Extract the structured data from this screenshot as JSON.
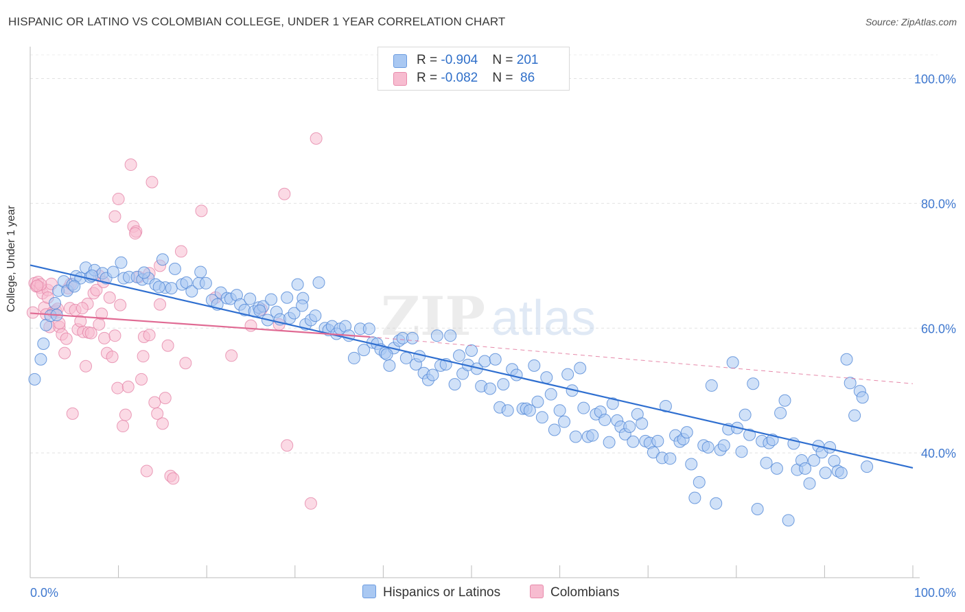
{
  "title": "HISPANIC OR LATINO VS COLOMBIAN COLLEGE, UNDER 1 YEAR CORRELATION CHART",
  "source": "Source: ZipAtlas.com",
  "watermark": {
    "zip": "ZIP",
    "atlas": "atlas"
  },
  "legend": {
    "rows": [
      {
        "r_label": "R = ",
        "r_value": "-0.904",
        "n_label": "N = ",
        "n_value": "201",
        "color": "#a9c8f2",
        "border": "#6a9be0"
      },
      {
        "r_label": "R = ",
        "r_value": "-0.082",
        "n_label": "N = ",
        "n_value": " 86",
        "color": "#f7bcd0",
        "border": "#e88aab"
      }
    ]
  },
  "chart_data": {
    "type": "scatter",
    "xlabel": "",
    "ylabel": "College, Under 1 year",
    "xlim": [
      0,
      100
    ],
    "ylim": [
      20,
      106
    ],
    "x_tick_labels": [
      "0.0%",
      "100.0%"
    ],
    "y_ticks": [
      40,
      60,
      80,
      100
    ],
    "y_tick_labels": [
      "40.0%",
      "60.0%",
      "80.0%",
      "100.0%"
    ],
    "grid": true,
    "legend_position": "bottom-center",
    "series": [
      {
        "name": "Hispanics or Latinos",
        "color": "#a9c8f2",
        "stroke": "#4f86d6",
        "trend": {
          "x": [
            0,
            100
          ],
          "y": [
            70.1,
            37.6
          ],
          "color": "#2f6fd0",
          "dashed_from": null
        },
        "points": [
          [
            0.5,
            51.8
          ],
          [
            1.2,
            55
          ],
          [
            1.5,
            57.5
          ],
          [
            1.8,
            60.5
          ],
          [
            2.3,
            62
          ],
          [
            2.8,
            64
          ],
          [
            3.2,
            66
          ],
          [
            3.8,
            67.5
          ],
          [
            4.2,
            66
          ],
          [
            4.8,
            67
          ],
          [
            5.2,
            68.3
          ],
          [
            5.7,
            68
          ],
          [
            6.3,
            69.7
          ],
          [
            6.8,
            68.2
          ],
          [
            7.3,
            69.3
          ],
          [
            8.2,
            68.8
          ],
          [
            8.6,
            68
          ],
          [
            9.4,
            69
          ],
          [
            10.3,
            70.5
          ],
          [
            10.6,
            68
          ],
          [
            11.2,
            68.2
          ],
          [
            12.1,
            68.2
          ],
          [
            12.7,
            67.8
          ],
          [
            13.4,
            68
          ],
          [
            14.2,
            67
          ],
          [
            15.0,
            71
          ],
          [
            15.3,
            66.5
          ],
          [
            16.0,
            66.4
          ],
          [
            16.4,
            69.5
          ],
          [
            17.2,
            67
          ],
          [
            17.7,
            67.3
          ],
          [
            18.3,
            65.9
          ],
          [
            19.1,
            67.2
          ],
          [
            19.3,
            69
          ],
          [
            19.9,
            67.2
          ],
          [
            20.6,
            64.5
          ],
          [
            21.2,
            63.8
          ],
          [
            21.6,
            65.7
          ],
          [
            22.3,
            64.8
          ],
          [
            22.7,
            64.7
          ],
          [
            23.4,
            65.3
          ],
          [
            23.8,
            63.8
          ],
          [
            24.3,
            62.9
          ],
          [
            24.9,
            64.7
          ],
          [
            25.4,
            62.7
          ],
          [
            25.9,
            63.3
          ],
          [
            26.4,
            63.5
          ],
          [
            26.9,
            61.3
          ],
          [
            27.3,
            64.6
          ],
          [
            27.9,
            62.6
          ],
          [
            28.3,
            61.4
          ],
          [
            29.1,
            64.9
          ],
          [
            29.4,
            61.6
          ],
          [
            29.9,
            62.4
          ],
          [
            30.3,
            67
          ],
          [
            30.9,
            64.8
          ],
          [
            31.2,
            60.6
          ],
          [
            31.8,
            61.3
          ],
          [
            32.3,
            62
          ],
          [
            32.7,
            67.3
          ],
          [
            33.4,
            60
          ],
          [
            33.8,
            59.7
          ],
          [
            34.2,
            60.3
          ],
          [
            34.7,
            59.1
          ],
          [
            35.1,
            59.9
          ],
          [
            35.7,
            60.3
          ],
          [
            36.1,
            58.8
          ],
          [
            36.7,
            55.2
          ],
          [
            37.4,
            59.9
          ],
          [
            37.8,
            56.5
          ],
          [
            38.4,
            59.9
          ],
          [
            38.8,
            57.7
          ],
          [
            39.3,
            57.5
          ],
          [
            39.7,
            56.6
          ],
          [
            40.2,
            56
          ],
          [
            40.7,
            54
          ],
          [
            41.2,
            56.8
          ],
          [
            41.8,
            58
          ],
          [
            42.2,
            58.4
          ],
          [
            42.6,
            55.2
          ],
          [
            43.3,
            58.4
          ],
          [
            43.7,
            54.2
          ],
          [
            44.1,
            55.5
          ],
          [
            44.6,
            52.8
          ],
          [
            45.1,
            51.7
          ],
          [
            45.6,
            52.5
          ],
          [
            46.1,
            58.8
          ],
          [
            46.5,
            54
          ],
          [
            47.1,
            54.2
          ],
          [
            47.6,
            58.8
          ],
          [
            48.1,
            51
          ],
          [
            48.6,
            55.6
          ],
          [
            49.0,
            52.7
          ],
          [
            49.6,
            54.1
          ],
          [
            50.0,
            56.4
          ],
          [
            50.6,
            53.5
          ],
          [
            51.1,
            50.7
          ],
          [
            51.5,
            54.7
          ],
          [
            52.1,
            50.3
          ],
          [
            52.7,
            55
          ],
          [
            53.2,
            47.3
          ],
          [
            53.6,
            51
          ],
          [
            54.1,
            46.8
          ],
          [
            54.6,
            53.4
          ],
          [
            55.1,
            52.5
          ],
          [
            55.8,
            47.1
          ],
          [
            56.2,
            47.1
          ],
          [
            56.6,
            46.8
          ],
          [
            57.1,
            54
          ],
          [
            57.5,
            48.2
          ],
          [
            58.0,
            45.7
          ],
          [
            58.5,
            52.1
          ],
          [
            59.0,
            49.4
          ],
          [
            59.4,
            43.7
          ],
          [
            60.0,
            46.8
          ],
          [
            60.5,
            45
          ],
          [
            60.9,
            52.6
          ],
          [
            61.4,
            50
          ],
          [
            61.8,
            42.6
          ],
          [
            62.3,
            53.6
          ],
          [
            62.7,
            47.2
          ],
          [
            63.2,
            42.6
          ],
          [
            63.7,
            42.8
          ],
          [
            64.1,
            46.2
          ],
          [
            64.6,
            46.6
          ],
          [
            65.1,
            45.3
          ],
          [
            65.6,
            41.7
          ],
          [
            66.0,
            47.9
          ],
          [
            66.5,
            45.2
          ],
          [
            66.9,
            44.2
          ],
          [
            67.4,
            43
          ],
          [
            67.9,
            44.2
          ],
          [
            68.3,
            41.8
          ],
          [
            68.8,
            46.2
          ],
          [
            69.3,
            44.7
          ],
          [
            69.7,
            41.9
          ],
          [
            70.2,
            41.6
          ],
          [
            70.6,
            40.1
          ],
          [
            71.1,
            41.9
          ],
          [
            71.6,
            39.2
          ],
          [
            72.0,
            47.5
          ],
          [
            72.5,
            39.1
          ],
          [
            73.1,
            42.8
          ],
          [
            73.6,
            41.8
          ],
          [
            74.0,
            42.2
          ],
          [
            74.4,
            43.3
          ],
          [
            74.9,
            38.2
          ],
          [
            75.3,
            32.8
          ],
          [
            75.8,
            35.3
          ],
          [
            76.3,
            41.2
          ],
          [
            76.8,
            40.9
          ],
          [
            77.2,
            50.8
          ],
          [
            77.7,
            31.9
          ],
          [
            78.2,
            40.5
          ],
          [
            78.6,
            41.2
          ],
          [
            79.1,
            43.8
          ],
          [
            79.6,
            54.5
          ],
          [
            80.1,
            44
          ],
          [
            80.6,
            40.2
          ],
          [
            81.0,
            46.1
          ],
          [
            81.5,
            42.9
          ],
          [
            81.9,
            51.1
          ],
          [
            82.4,
            31
          ],
          [
            82.9,
            41.9
          ],
          [
            83.4,
            38.4
          ],
          [
            83.7,
            41.6
          ],
          [
            84.1,
            42.1
          ],
          [
            84.6,
            37.5
          ],
          [
            85.0,
            46.4
          ],
          [
            85.5,
            48.4
          ],
          [
            85.9,
            29.2
          ],
          [
            86.5,
            41.5
          ],
          [
            86.9,
            37.3
          ],
          [
            87.4,
            38.8
          ],
          [
            87.8,
            37.5
          ],
          [
            88.3,
            35.1
          ],
          [
            88.8,
            38.8
          ],
          [
            89.3,
            41.1
          ],
          [
            89.7,
            40.1
          ],
          [
            90.1,
            36.8
          ],
          [
            90.6,
            40.9
          ],
          [
            91.1,
            38.7
          ],
          [
            91.5,
            37.1
          ],
          [
            91.9,
            36.8
          ],
          [
            92.5,
            55
          ],
          [
            92.9,
            51.2
          ],
          [
            93.4,
            46
          ],
          [
            94.0,
            49.9
          ],
          [
            94.3,
            48.9
          ],
          [
            94.8,
            37.8
          ],
          [
            3.0,
            62.1
          ],
          [
            5.0,
            66.7
          ],
          [
            7.0,
            68.4
          ],
          [
            12.9,
            68.9
          ],
          [
            14.6,
            66.6
          ],
          [
            26.0,
            62.8
          ],
          [
            30.8,
            63.6
          ],
          [
            40.4,
            55.8
          ]
        ]
      },
      {
        "name": "Colombians",
        "color": "#f7bcd0",
        "stroke": "#e585a7",
        "trend": {
          "x": [
            0,
            38.5
          ],
          "y": [
            62.4,
            58.6
          ],
          "color": "#e06a93",
          "dashed_to": [
            100,
            51.1
          ]
        },
        "points": [
          [
            0.3,
            62.5
          ],
          [
            0.5,
            67.2
          ],
          [
            0.7,
            66.7
          ],
          [
            0.9,
            67.4
          ],
          [
            1.1,
            66.5
          ],
          [
            1.4,
            65.6
          ],
          [
            1.6,
            63.3
          ],
          [
            1.8,
            62.2
          ],
          [
            2.0,
            66.1
          ],
          [
            2.2,
            60.2
          ],
          [
            2.4,
            67.1
          ],
          [
            2.6,
            62.6
          ],
          [
            2.9,
            62.8
          ],
          [
            3.1,
            63.1
          ],
          [
            3.3,
            60.2
          ],
          [
            3.6,
            59
          ],
          [
            3.9,
            56
          ],
          [
            4.1,
            58.3
          ],
          [
            4.3,
            66.4
          ],
          [
            4.5,
            63.2
          ],
          [
            4.8,
            46.3
          ],
          [
            5.1,
            62.9
          ],
          [
            5.4,
            59.8
          ],
          [
            5.7,
            61.1
          ],
          [
            6.0,
            59.4
          ],
          [
            6.3,
            53.9
          ],
          [
            6.6,
            59.3
          ],
          [
            6.9,
            59.2
          ],
          [
            7.2,
            65.6
          ],
          [
            7.5,
            66.1
          ],
          [
            7.8,
            60.6
          ],
          [
            8.1,
            62.3
          ],
          [
            8.4,
            58.4
          ],
          [
            8.7,
            56
          ],
          [
            9.0,
            64.9
          ],
          [
            9.3,
            55.4
          ],
          [
            9.6,
            58.8
          ],
          [
            9.9,
            50.4
          ],
          [
            10.2,
            63.7
          ],
          [
            10.5,
            44.3
          ],
          [
            10.8,
            46.1
          ],
          [
            11.1,
            50.6
          ],
          [
            11.4,
            86.2
          ],
          [
            11.7,
            76.3
          ],
          [
            12.0,
            75.5
          ],
          [
            12.3,
            68.2
          ],
          [
            12.6,
            51.8
          ],
          [
            12.9,
            58.6
          ],
          [
            13.2,
            37.1
          ],
          [
            13.5,
            58.9
          ],
          [
            13.8,
            83.4
          ],
          [
            14.1,
            48.1
          ],
          [
            14.4,
            46.3
          ],
          [
            14.7,
            63.8
          ],
          [
            15.0,
            44.7
          ],
          [
            15.3,
            48.8
          ],
          [
            15.6,
            57.2
          ],
          [
            15.9,
            36.3
          ],
          [
            16.2,
            35.9
          ],
          [
            17.1,
            72.3
          ],
          [
            17.6,
            54.4
          ],
          [
            19.4,
            78.8
          ],
          [
            21.0,
            64.9
          ],
          [
            22.8,
            55.6
          ],
          [
            25.0,
            60.4
          ],
          [
            26.2,
            63
          ],
          [
            28.2,
            60.6
          ],
          [
            28.8,
            81.5
          ],
          [
            29.1,
            41.2
          ],
          [
            31.8,
            31.9
          ],
          [
            32.4,
            90.4
          ],
          [
            10.0,
            80.7
          ],
          [
            9.6,
            77.9
          ],
          [
            11.9,
            75.2
          ],
          [
            13.5,
            68.8
          ],
          [
            14.7,
            70
          ],
          [
            6.5,
            63.9
          ],
          [
            7.8,
            68.4
          ],
          [
            8.3,
            67.4
          ],
          [
            5.9,
            63.2
          ],
          [
            3.3,
            60.8
          ],
          [
            1.2,
            67
          ],
          [
            2.0,
            64.9
          ],
          [
            0.8,
            66.8
          ],
          [
            4.6,
            67.1
          ],
          [
            12.8,
            55.5
          ]
        ]
      }
    ]
  },
  "bottom_legend": [
    {
      "label": "Hispanics or Latinos",
      "color": "#a9c8f2",
      "border": "#6a9be0"
    },
    {
      "label": "Colombians",
      "color": "#f7bcd0",
      "border": "#e88aab"
    }
  ]
}
